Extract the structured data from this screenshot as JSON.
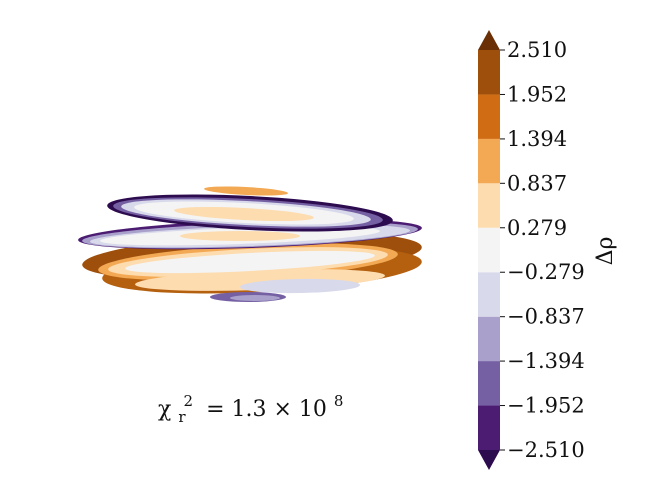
{
  "chart_data": {
    "type": "heatmap",
    "title": "",
    "colorbar": {
      "label": "Δρ",
      "extend": "both",
      "levels": [
        -2.51,
        -1.952,
        -1.394,
        -0.837,
        -0.279,
        0.279,
        0.837,
        1.394,
        1.952,
        2.51
      ],
      "tick_labels": [
        "−2.510",
        "−1.952",
        "−1.394",
        "−0.837",
        "−0.279",
        "0.279",
        "0.837",
        "1.394",
        "1.952",
        "2.510"
      ],
      "colors": [
        "#2d0b4f",
        "#4b1c72",
        "#7560a3",
        "#a9a1cb",
        "#d8d9eb",
        "#f4f4f4",
        "#fddcb0",
        "#f3a953",
        "#d06d14",
        "#9e4f0b",
        "#6b2f06"
      ]
    },
    "annotation": {
      "prefix": "χ",
      "sub": "r",
      "sup": "2",
      "value": "= 1.3 × 10",
      "exp": "8"
    }
  }
}
